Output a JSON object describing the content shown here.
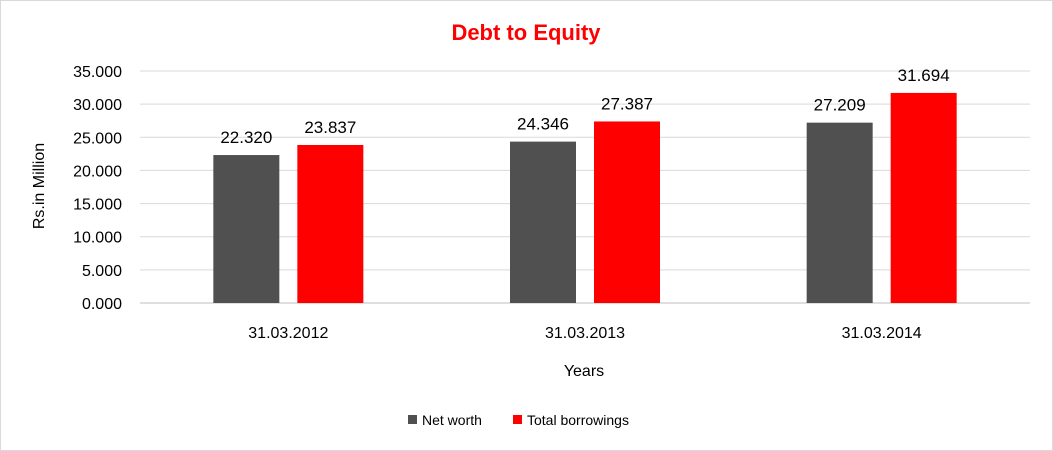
{
  "chart_data": {
    "type": "bar",
    "title": "Debt to Equity",
    "xlabel": "Years",
    "ylabel": "Rs.in Million",
    "categories": [
      "31.03.2012",
      "31.03.2013",
      "31.03.2014"
    ],
    "series": [
      {
        "name": "Net worth",
        "values": [
          22.32,
          24.346,
          27.209
        ],
        "labels": [
          "22.320",
          "24.346",
          "27.209"
        ],
        "color": "#505050"
      },
      {
        "name": "Total borrowings",
        "values": [
          23.837,
          27.387,
          31.694
        ],
        "labels": [
          "23.837",
          "27.387",
          "31.694"
        ],
        "color": "#ff0000"
      }
    ],
    "ylim": [
      0,
      35
    ],
    "yticks": [
      0,
      5,
      10,
      15,
      20,
      25,
      30,
      35
    ],
    "ytick_labels": [
      "0.000",
      "5.000",
      "10.000",
      "15.000",
      "20.000",
      "25.000",
      "30.000",
      "35.000"
    ],
    "grid": true,
    "legend": "bottom",
    "title_color": "#ff0000"
  }
}
